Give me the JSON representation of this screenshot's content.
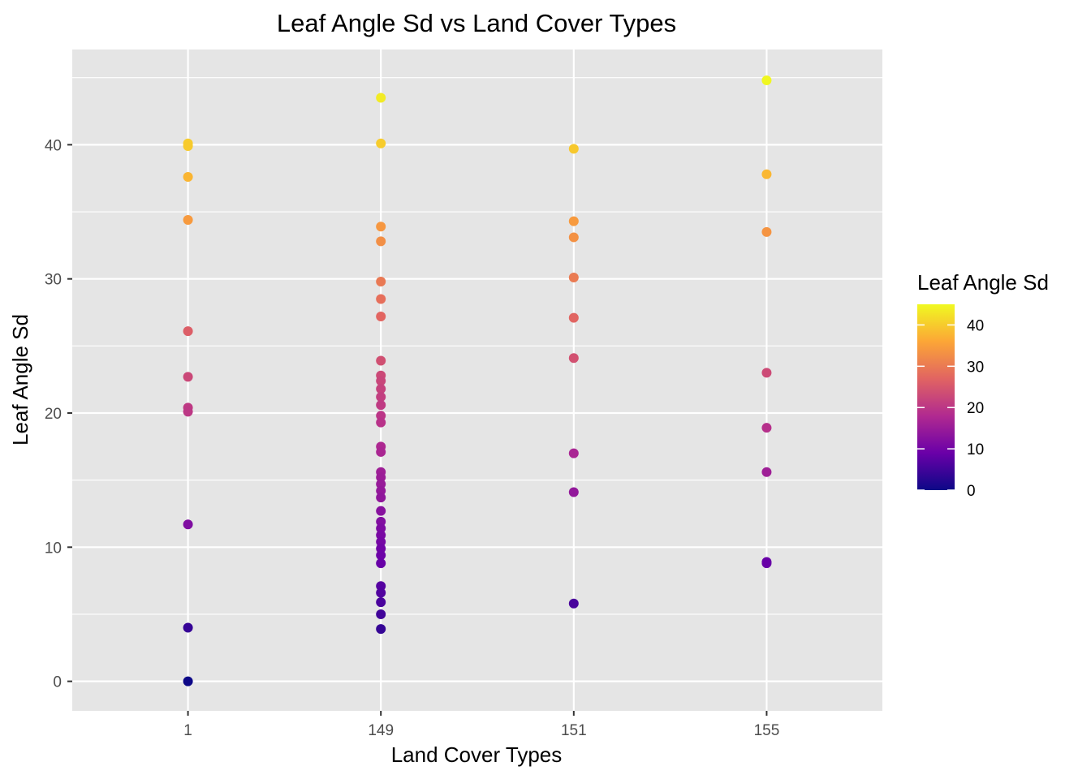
{
  "chart_data": {
    "type": "scatter",
    "title": "Leaf Angle Sd vs Land Cover Types",
    "xlabel": "Land Cover Types",
    "ylabel": "Leaf Angle Sd",
    "x_categories": [
      "1",
      "149",
      "151",
      "155"
    ],
    "y_ticks": [
      0,
      10,
      20,
      30,
      40
    ],
    "ylim": [
      -2.2,
      47.1
    ],
    "grid": true,
    "background": "#e5e5e5",
    "legend": {
      "title": "Leaf Angle Sd",
      "position": "right",
      "ticks": [
        0,
        10,
        20,
        30,
        40
      ],
      "range": [
        0,
        45
      ],
      "colormap": [
        "#0d0887",
        "#6a00a8",
        "#b12a90",
        "#e16462",
        "#fca636",
        "#f0f921"
      ]
    },
    "points": [
      {
        "x": "1",
        "y": 40.1
      },
      {
        "x": "1",
        "y": 39.9
      },
      {
        "x": "1",
        "y": 37.6
      },
      {
        "x": "1",
        "y": 34.4
      },
      {
        "x": "1",
        "y": 26.1
      },
      {
        "x": "1",
        "y": 22.7
      },
      {
        "x": "1",
        "y": 20.4
      },
      {
        "x": "1",
        "y": 20.1
      },
      {
        "x": "1",
        "y": 11.7
      },
      {
        "x": "1",
        "y": 4.0
      },
      {
        "x": "1",
        "y": 0.0
      },
      {
        "x": "149",
        "y": 43.5
      },
      {
        "x": "149",
        "y": 40.1
      },
      {
        "x": "149",
        "y": 33.9
      },
      {
        "x": "149",
        "y": 32.8
      },
      {
        "x": "149",
        "y": 29.8
      },
      {
        "x": "149",
        "y": 28.5
      },
      {
        "x": "149",
        "y": 27.2
      },
      {
        "x": "149",
        "y": 23.9
      },
      {
        "x": "149",
        "y": 22.8
      },
      {
        "x": "149",
        "y": 22.4
      },
      {
        "x": "149",
        "y": 21.8
      },
      {
        "x": "149",
        "y": 21.2
      },
      {
        "x": "149",
        "y": 20.6
      },
      {
        "x": "149",
        "y": 19.8
      },
      {
        "x": "149",
        "y": 19.3
      },
      {
        "x": "149",
        "y": 17.5
      },
      {
        "x": "149",
        "y": 17.1
      },
      {
        "x": "149",
        "y": 15.6
      },
      {
        "x": "149",
        "y": 15.2
      },
      {
        "x": "149",
        "y": 14.7
      },
      {
        "x": "149",
        "y": 14.2
      },
      {
        "x": "149",
        "y": 13.7
      },
      {
        "x": "149",
        "y": 12.7
      },
      {
        "x": "149",
        "y": 11.9
      },
      {
        "x": "149",
        "y": 11.4
      },
      {
        "x": "149",
        "y": 10.9
      },
      {
        "x": "149",
        "y": 10.4
      },
      {
        "x": "149",
        "y": 9.9
      },
      {
        "x": "149",
        "y": 9.4
      },
      {
        "x": "149",
        "y": 8.8
      },
      {
        "x": "149",
        "y": 7.1
      },
      {
        "x": "149",
        "y": 6.6
      },
      {
        "x": "149",
        "y": 5.9
      },
      {
        "x": "149",
        "y": 5.0
      },
      {
        "x": "149",
        "y": 3.9
      },
      {
        "x": "151",
        "y": 39.7
      },
      {
        "x": "151",
        "y": 34.3
      },
      {
        "x": "151",
        "y": 33.1
      },
      {
        "x": "151",
        "y": 30.1
      },
      {
        "x": "151",
        "y": 27.1
      },
      {
        "x": "151",
        "y": 24.1
      },
      {
        "x": "151",
        "y": 17.0
      },
      {
        "x": "151",
        "y": 14.1
      },
      {
        "x": "151",
        "y": 5.8
      },
      {
        "x": "155",
        "y": 44.8
      },
      {
        "x": "155",
        "y": 37.8
      },
      {
        "x": "155",
        "y": 33.5
      },
      {
        "x": "155",
        "y": 23.0
      },
      {
        "x": "155",
        "y": 18.9
      },
      {
        "x": "155",
        "y": 15.6
      },
      {
        "x": "155",
        "y": 8.9
      },
      {
        "x": "155",
        "y": 8.8
      }
    ]
  }
}
